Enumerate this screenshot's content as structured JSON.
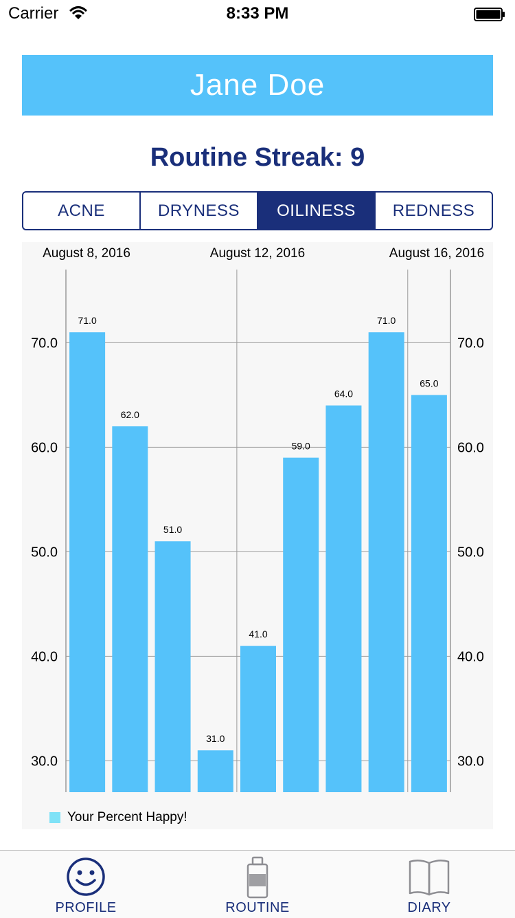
{
  "status_bar": {
    "carrier": "Carrier",
    "time": "8:33 PM"
  },
  "profile": {
    "name": "Jane Doe",
    "streak_label": "Routine Streak: 9"
  },
  "segments": [
    {
      "label": "ACNE",
      "active": false
    },
    {
      "label": "DRYNESS",
      "active": false
    },
    {
      "label": "OILINESS",
      "active": true
    },
    {
      "label": "REDNESS",
      "active": false
    }
  ],
  "colors": {
    "banner": "#55c2fa",
    "navy": "#1a2f7a",
    "bar": "#55c2fa",
    "legend": "#7fe2f7",
    "inactive_tab": "#8e8e93"
  },
  "chart_data": {
    "type": "bar",
    "top_labels": [
      "August 8, 2016",
      "August 12, 2016",
      "August 16, 2016"
    ],
    "values": [
      71.0,
      62.0,
      51.0,
      31.0,
      41.0,
      59.0,
      64.0,
      71.0,
      65.0
    ],
    "y_ticks": [
      "30.0",
      "40.0",
      "50.0",
      "60.0",
      "70.0"
    ],
    "y_tick_values": [
      30,
      40,
      50,
      60,
      70
    ],
    "ylim": [
      27,
      77
    ],
    "legend": "Your Percent Happy!",
    "grid": true
  },
  "tabs": [
    {
      "label": "PROFILE",
      "icon": "smiley-face-icon",
      "active": true
    },
    {
      "label": "ROUTINE",
      "icon": "bottle-icon",
      "active": false
    },
    {
      "label": "DIARY",
      "icon": "open-book-icon",
      "active": false
    }
  ]
}
